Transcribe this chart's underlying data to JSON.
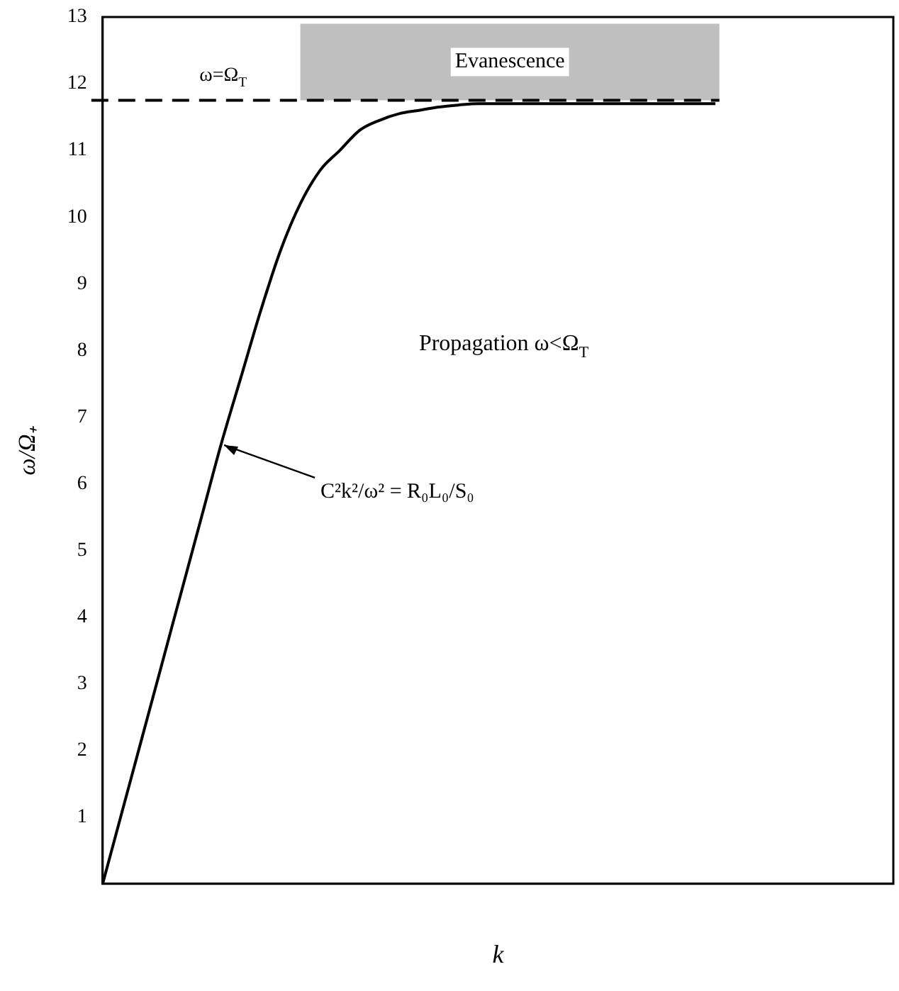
{
  "chart_data": {
    "type": "line",
    "xlabel": "k",
    "ylabel": "ω/Ω₊",
    "categories": [
      null,
      null,
      null,
      null,
      null,
      null,
      null,
      null,
      null,
      null,
      null,
      null,
      null,
      null,
      null,
      null,
      null,
      null,
      null,
      null,
      null,
      null,
      null,
      null,
      null,
      null,
      null,
      null,
      null,
      null,
      null,
      null,
      null,
      null,
      null,
      null,
      null,
      null,
      null,
      null,
      null
    ],
    "series": [
      {
        "color": "#000000",
        "values": [
          0,
          1.1,
          2.2,
          3.3,
          4.4,
          5.5,
          6.6,
          7.6,
          8.6,
          9.5,
          10.2,
          10.7,
          11.0,
          11.3,
          11.45,
          11.55,
          11.6,
          11.65,
          11.68,
          11.7,
          11.7,
          11.7,
          11.7,
          11.7,
          11.7,
          11.7,
          11.7,
          11.7,
          11.7,
          11.7,
          11.7,
          11.7,
          null,
          null,
          null,
          null,
          null,
          null,
          null,
          null,
          null
        ]
      }
    ],
    "ylim": [
      0,
      13
    ],
    "yticks": [
      1,
      2,
      3,
      4,
      5,
      6,
      7,
      8,
      9,
      10,
      11,
      12,
      13
    ],
    "tick_labels": "y",
    "grid": false,
    "legend": false,
    "marker": "none",
    "line_style": "solid",
    "ref_lines": [
      {
        "axis": "y",
        "value": 11.75,
        "label": "ω=Ω$_{T}$",
        "line_style": "dashed",
        "color": "#000000"
      }
    ],
    "bands": [
      {
        "axis": "y",
        "from": 11.75,
        "to": 12.9,
        "label": "Evanescence",
        "color": "#000000"
      }
    ],
    "annotations": [
      "Propagation ω<Ω$_{T}$",
      "C²k²/ω² = R₀L₀/S₀"
    ]
  }
}
